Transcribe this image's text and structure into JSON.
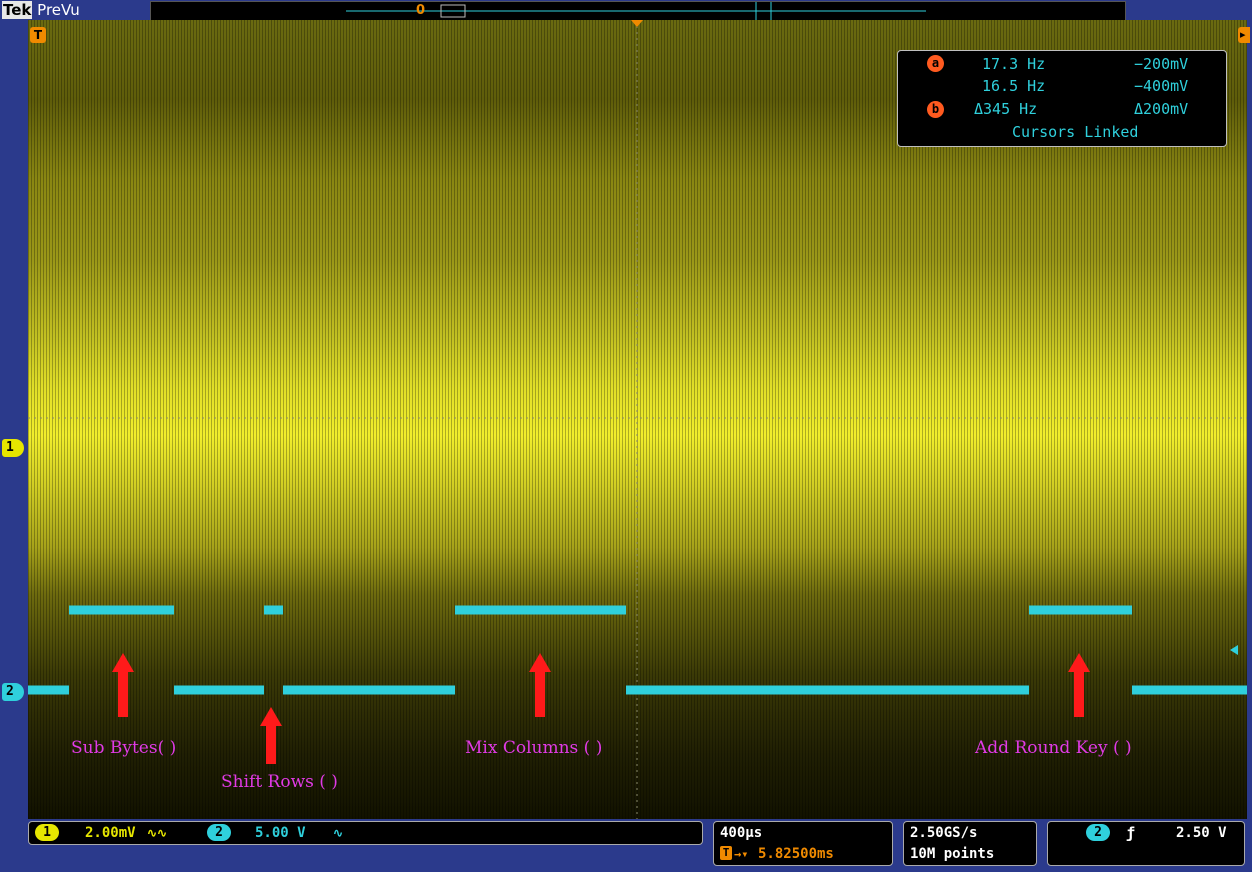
{
  "header": {
    "brand": "Tek",
    "mode": "PreVu"
  },
  "colors": {
    "ch1": "#e6e600",
    "ch2": "#2fd0dc",
    "annotation": "#e13ae6",
    "arrow": "#ff1a1a",
    "background": "#2b3a8c"
  },
  "markers": {
    "trigger": "T",
    "ch1": "1",
    "ch2": "2",
    "record_pos": "0"
  },
  "cursor_readout": {
    "a_badge": "a",
    "b_badge": "b",
    "a_freq": "17.3 Hz",
    "a_volt": "−200mV",
    "b_freq": "16.5 Hz",
    "b_volt": "−400mV",
    "delta_freq": "Δ345 Hz",
    "delta_volt": "Δ200mV",
    "status": "Cursors Linked"
  },
  "annotations": {
    "sub_bytes": "Sub Bytes( )",
    "shift_rows": "Shift Rows ( )",
    "mix_columns": "Mix Columns ( )",
    "add_round_key": "Add Round Key ( )"
  },
  "channels": {
    "ch1": {
      "num": "1",
      "scale": "2.00mV",
      "coupling": "∿∿"
    },
    "ch2": {
      "num": "2",
      "scale": "5.00 V",
      "coupling": "∿"
    }
  },
  "horizontal": {
    "timebase": "400µs",
    "position": "5.82500ms",
    "pos_icon": "T"
  },
  "acquisition": {
    "sample_rate": "2.50GS/s",
    "record_length": "10M points"
  },
  "trigger": {
    "source": "2",
    "slope_icon": "rising-edge-icon",
    "level": "2.50 V"
  }
}
